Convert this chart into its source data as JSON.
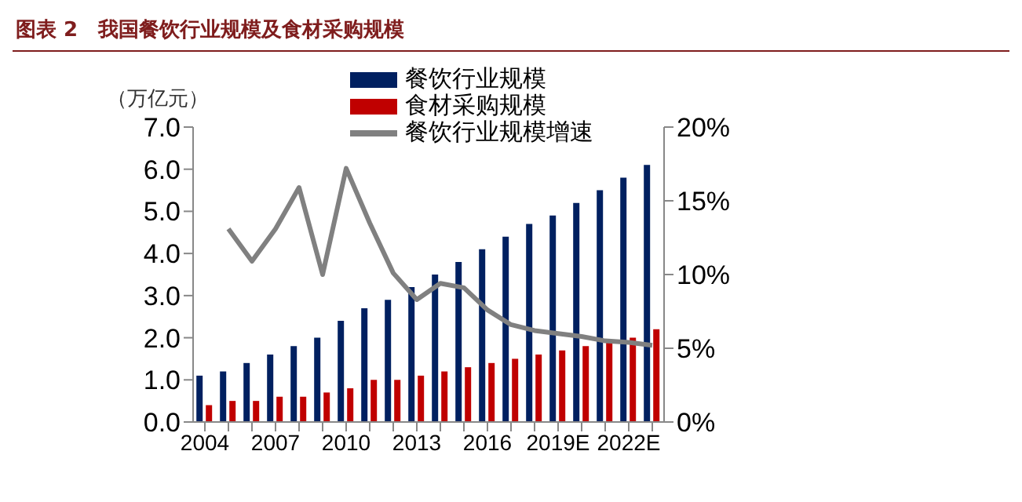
{
  "chart_data": {
    "type": "bar",
    "title": "图表 2　我国餐饮行业规模及食材采购规模",
    "ylabel": "（万亿元）",
    "categories": [
      "2004",
      null,
      null,
      "2007",
      null,
      null,
      "2010",
      null,
      null,
      "2013",
      null,
      null,
      "2016",
      null,
      null,
      "2019E",
      null,
      null,
      "2022E",
      null
    ],
    "series": [
      {
        "name": "餐饮行业规模",
        "color": "#002060",
        "values": [
          1.1,
          1.2,
          1.4,
          1.6,
          1.8,
          2.0,
          2.4,
          2.7,
          2.9,
          3.2,
          3.5,
          3.8,
          4.1,
          4.4,
          4.7,
          4.9,
          5.2,
          5.5,
          5.8,
          6.1
        ]
      },
      {
        "name": "食材采购规模",
        "color": "#c00000",
        "values": [
          0.4,
          0.5,
          0.5,
          0.6,
          0.6,
          0.7,
          0.8,
          1.0,
          1.0,
          1.1,
          1.2,
          1.3,
          1.4,
          1.5,
          1.6,
          1.7,
          1.8,
          1.9,
          2.0,
          2.2
        ]
      },
      {
        "name": "餐饮行业规模增速",
        "type": "line",
        "axis": "y2",
        "color": "#808080",
        "values": [
          null,
          13.1,
          10.9,
          13.1,
          15.9,
          10.0,
          17.2,
          13.5,
          10.1,
          8.3,
          9.4,
          9.1,
          7.6,
          6.6,
          6.2,
          6.0,
          5.8,
          5.5,
          5.4,
          5.2
        ]
      }
    ],
    "ylim": [
      0,
      7
    ],
    "yticks": [
      {
        "value": 0,
        "label": "0.0"
      },
      {
        "value": 1,
        "label": "1.0"
      },
      {
        "value": 2,
        "label": "2.0"
      },
      {
        "value": 3,
        "label": "3.0"
      },
      {
        "value": 4,
        "label": "4.0"
      },
      {
        "value": 5,
        "label": "5.0"
      },
      {
        "value": 6,
        "label": "6.0"
      },
      {
        "value": 7,
        "label": "7.0"
      }
    ],
    "y2lim": [
      0,
      20
    ],
    "y2ticks": [
      {
        "value": 0,
        "label": "0%"
      },
      {
        "value": 5,
        "label": "5%"
      },
      {
        "value": 10,
        "label": "10%"
      },
      {
        "value": 15,
        "label": "15%"
      },
      {
        "value": 20,
        "label": "20%"
      }
    ],
    "grid": false,
    "legend": "top",
    "marker": "none",
    "line_style": "solid"
  }
}
